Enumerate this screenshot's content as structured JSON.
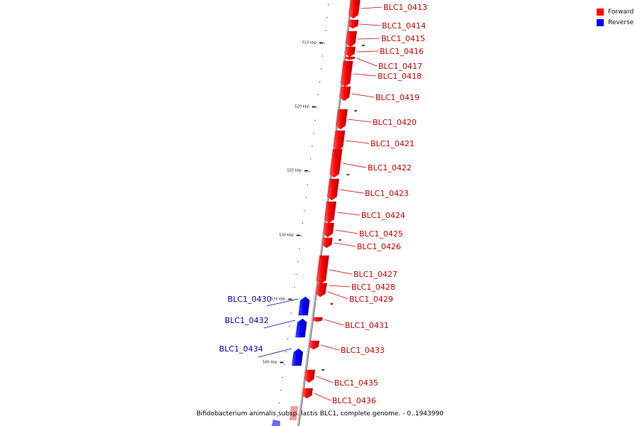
{
  "title": "Bifidobacterium animalis subsp. lactis BLC1, complete genome. - 0..1943990",
  "legend": {
    "forward": {
      "label": "Forward",
      "color": "#ff0000"
    },
    "reverse": {
      "label": "Reverse",
      "color": "#0000ff"
    }
  },
  "colors": {
    "forward_text": "#cc0000",
    "reverse_text": "#0000aa",
    "backbone": "#888888"
  },
  "scale": {
    "ticks": [
      {
        "label": "515 kbp"
      },
      {
        "label": "520 kbp"
      },
      {
        "label": "525 kbp"
      },
      {
        "label": "530 kbp"
      },
      {
        "label": "535 kbp"
      },
      {
        "label": "540 kbp"
      }
    ]
  },
  "genes": [
    {
      "name": "BLC1_0413",
      "strand": "forward"
    },
    {
      "name": "BLC1_0414",
      "strand": "forward"
    },
    {
      "name": "BLC1_0415",
      "strand": "forward"
    },
    {
      "name": "BLC1_0416",
      "strand": "forward"
    },
    {
      "name": "BLC1_0417",
      "strand": "forward"
    },
    {
      "name": "BLC1_0418",
      "strand": "forward"
    },
    {
      "name": "BLC1_0419",
      "strand": "forward"
    },
    {
      "name": "BLC1_0420",
      "strand": "forward"
    },
    {
      "name": "BLC1_0421",
      "strand": "forward"
    },
    {
      "name": "BLC1_0422",
      "strand": "forward"
    },
    {
      "name": "BLC1_0423",
      "strand": "forward"
    },
    {
      "name": "BLC1_0424",
      "strand": "forward"
    },
    {
      "name": "BLC1_0425",
      "strand": "forward"
    },
    {
      "name": "BLC1_0426",
      "strand": "forward"
    },
    {
      "name": "BLC1_0427",
      "strand": "forward"
    },
    {
      "name": "BLC1_0428",
      "strand": "forward"
    },
    {
      "name": "BLC1_0429",
      "strand": "forward"
    },
    {
      "name": "BLC1_0430",
      "strand": "reverse"
    },
    {
      "name": "BLC1_0431",
      "strand": "forward"
    },
    {
      "name": "BLC1_0432",
      "strand": "reverse"
    },
    {
      "name": "BLC1_0433",
      "strand": "forward"
    },
    {
      "name": "BLC1_0434",
      "strand": "reverse"
    },
    {
      "name": "BLC1_0435",
      "strand": "forward"
    },
    {
      "name": "BLC1_0436",
      "strand": "forward"
    }
  ]
}
